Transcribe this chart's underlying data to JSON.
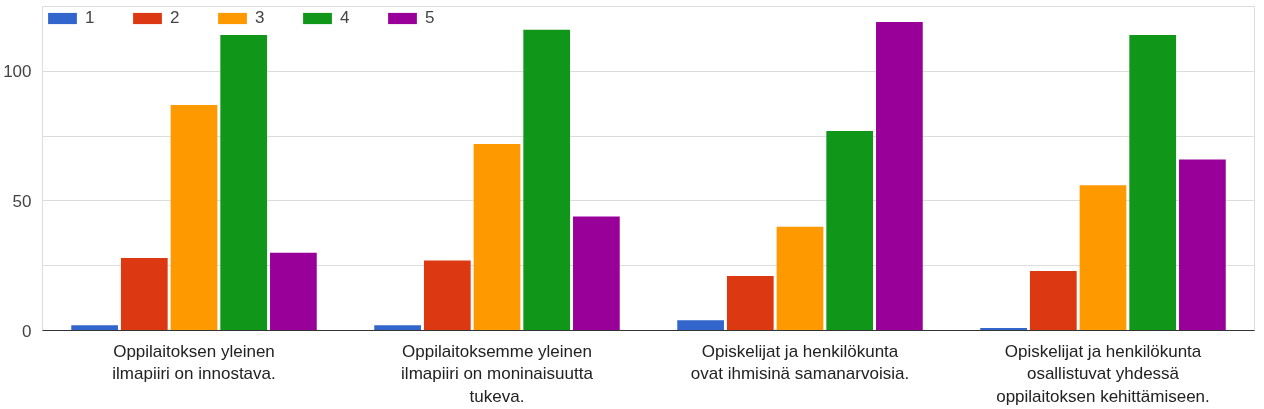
{
  "chart_data": {
    "type": "bar",
    "categories": [
      "Oppilaitoksen yleinen ilmapiiri on innostava.",
      "Oppilaitoksemme yleinen ilmapiiri on moninaisuutta tukeva.",
      "Opiskelijat ja henkilökunta ovat ihmisinä samanarvoisia.",
      "Opiskelijat ja henkilökunta osallistuvat yhdessä oppilaitoksen kehittämiseen."
    ],
    "series": [
      {
        "name": "1",
        "color": "#3366cc",
        "values": [
          2,
          2,
          4,
          1
        ]
      },
      {
        "name": "2",
        "color": "#dc3912",
        "values": [
          28,
          27,
          21,
          23
        ]
      },
      {
        "name": "3",
        "color": "#ff9900",
        "values": [
          87,
          72,
          40,
          56
        ]
      },
      {
        "name": "4",
        "color": "#109618",
        "values": [
          114,
          116,
          77,
          114
        ]
      },
      {
        "name": "5",
        "color": "#990099",
        "values": [
          30,
          44,
          119,
          66
        ]
      }
    ],
    "ylim": [
      0,
      125
    ],
    "yticks": [
      0,
      {
        "value": 25,
        "label": null
      },
      50,
      {
        "value": 75,
        "label": null
      },
      100,
      {
        "value": 125,
        "label": null
      }
    ],
    "grid": "y",
    "legend": "top left"
  }
}
